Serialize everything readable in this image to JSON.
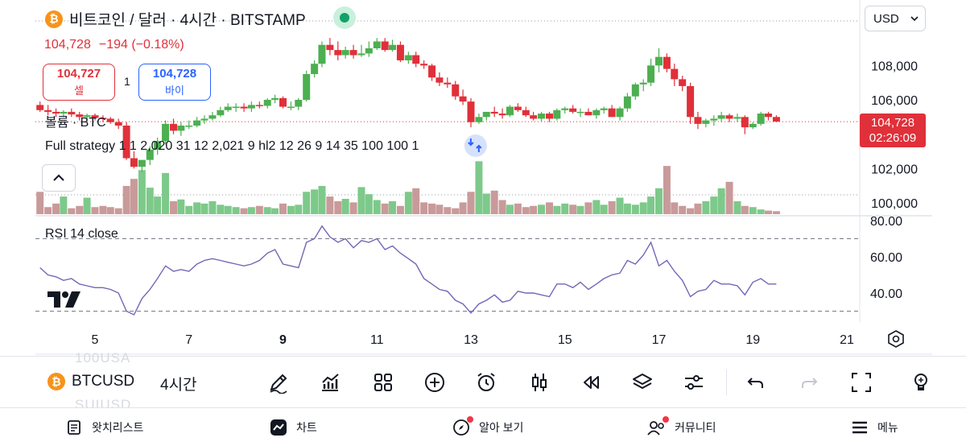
{
  "header": {
    "title": "비트코인 / 달러 · 4시간 · BITSTAMP",
    "logo_glyph": "₿",
    "price": "104,728",
    "change": "−194 (−0.18%)",
    "sell_price": "104,727",
    "sell_label": "셀",
    "buy_price": "104,728",
    "buy_label": "바이",
    "spread": "1"
  },
  "indicators": {
    "volume_label": "볼륨 · BTC",
    "strategy_label": "Full strategy 1 1 2,020 31 12 2,021 9 hl2 12 26 9 14 35 100 100 1",
    "rsi_label": "RSI 14 close"
  },
  "currency_selector": {
    "value": "USD",
    "icon": "chevron-down-icon"
  },
  "last_price_tag": {
    "price": "104,728",
    "countdown": "02:26:09"
  },
  "colors": {
    "up": "#4caf50",
    "down": "#e0303a",
    "up_vol": "#7dc98a",
    "down_vol": "#c99a9a",
    "rsi": "#7267b5",
    "accent": "#2962ff"
  },
  "chart_data": [
    {
      "type": "candlestick",
      "title": "비트코인 / 달러 · 4시간 · BITSTAMP",
      "y_ticks": [
        "108,000",
        "106,000",
        "102,000",
        "100,000"
      ],
      "x_ticks": [
        "5",
        "7",
        "9",
        "11",
        "13",
        "15",
        "17",
        "19",
        "21"
      ],
      "ylim": [
        99500,
        110500
      ],
      "xlim": [
        3.8,
        21.0
      ],
      "last_price": 104728,
      "x": [
        3.83,
        4.0,
        4.17,
        4.33,
        4.5,
        4.67,
        4.83,
        5.0,
        5.17,
        5.33,
        5.5,
        5.67,
        5.83,
        6.0,
        6.17,
        6.33,
        6.5,
        6.67,
        6.83,
        7.0,
        7.17,
        7.33,
        7.5,
        7.67,
        7.83,
        8.0,
        8.17,
        8.33,
        8.5,
        8.67,
        8.83,
        9.0,
        9.17,
        9.33,
        9.5,
        9.67,
        9.83,
        10.0,
        10.17,
        10.33,
        10.5,
        10.67,
        10.83,
        11.0,
        11.17,
        11.33,
        11.5,
        11.67,
        11.83,
        12.0,
        12.17,
        12.33,
        12.5,
        12.67,
        12.83,
        13.0,
        13.17,
        13.33,
        13.5,
        13.67,
        13.83,
        14.0,
        14.17,
        14.33,
        14.5,
        14.67,
        14.83,
        15.0,
        15.17,
        15.33,
        15.5,
        15.67,
        15.83,
        16.0,
        16.17,
        16.33,
        16.5,
        16.67,
        16.83,
        17.0,
        17.17,
        17.33,
        17.5,
        17.67,
        17.83,
        18.0,
        18.17,
        18.33,
        18.5,
        18.67,
        18.83,
        19.0,
        19.17,
        19.33,
        19.5
      ],
      "open": [
        105700,
        105400,
        105300,
        105200,
        105300,
        105150,
        105000,
        105100,
        104950,
        104900,
        104700,
        104500,
        102600,
        102100,
        102500,
        103100,
        103600,
        104600,
        104200,
        104500,
        104500,
        104800,
        104900,
        105100,
        105400,
        105600,
        105600,
        105500,
        105700,
        105650,
        106000,
        106100,
        105600,
        105600,
        106000,
        107500,
        108100,
        109200,
        108900,
        108600,
        108900,
        108600,
        108700,
        109000,
        109400,
        108900,
        109200,
        108300,
        108600,
        108100,
        108000,
        107300,
        107000,
        106900,
        106200,
        105900,
        104700,
        105000,
        105300,
        105200,
        105100,
        105600,
        105400,
        105100,
        104900,
        105200,
        104900,
        105400,
        105500,
        105300,
        105300,
        105100,
        105400,
        105500,
        105000,
        105500,
        106200,
        106900,
        107000,
        108000,
        108500,
        107800,
        107200,
        106800,
        105000,
        104600,
        104800,
        104900,
        105100,
        104900,
        105000,
        104400,
        104600,
        105200,
        105000
      ],
      "high": [
        105900,
        105700,
        105500,
        105400,
        105500,
        105300,
        105200,
        105200,
        105100,
        105000,
        104900,
        104700,
        103000,
        102500,
        103300,
        103800,
        104800,
        104900,
        104700,
        104800,
        105000,
        105100,
        105300,
        105600,
        105800,
        105800,
        105800,
        105900,
        105900,
        106100,
        106300,
        106200,
        105900,
        106100,
        107700,
        108300,
        109400,
        109600,
        109400,
        109100,
        109200,
        109200,
        109400,
        109600,
        109600,
        109500,
        109400,
        108800,
        108800,
        108300,
        108100,
        107600,
        107300,
        107100,
        106600,
        106100,
        105200,
        105300,
        105600,
        105500,
        105700,
        105800,
        105600,
        105300,
        105300,
        105300,
        105500,
        105600,
        105700,
        105500,
        105500,
        105500,
        105600,
        105700,
        105600,
        106400,
        107000,
        107200,
        108400,
        109000,
        108700,
        108100,
        107400,
        107000,
        105300,
        104900,
        105100,
        105300,
        105200,
        105200,
        105100,
        104700,
        105300,
        105300,
        105100
      ],
      "low": [
        105300,
        105100,
        105000,
        105000,
        105000,
        104800,
        104800,
        104800,
        104700,
        104600,
        104300,
        102500,
        102000,
        101800,
        102200,
        102800,
        103400,
        104000,
        103900,
        104300,
        104400,
        104600,
        104800,
        105000,
        105300,
        105300,
        105300,
        105300,
        105500,
        105500,
        105800,
        105500,
        105400,
        105400,
        105900,
        107300,
        107900,
        108600,
        108300,
        108400,
        108400,
        108500,
        108500,
        108900,
        108800,
        108800,
        108200,
        108100,
        107900,
        107800,
        107100,
        106800,
        106700,
        106000,
        105700,
        104400,
        104600,
        104800,
        105000,
        104900,
        105000,
        105300,
        105000,
        104800,
        104700,
        104700,
        104800,
        105200,
        105200,
        105000,
        105100,
        104900,
        105200,
        105000,
        104800,
        105300,
        106000,
        106500,
        106800,
        107600,
        107600,
        106800,
        106500,
        104600,
        104300,
        104400,
        104500,
        104700,
        104700,
        104700,
        104000,
        104300,
        104500,
        104800,
        104700
      ],
      "close": [
        105400,
        105300,
        105200,
        105300,
        105150,
        105000,
        105100,
        104950,
        104900,
        104700,
        104500,
        102600,
        102100,
        102500,
        103100,
        103600,
        104600,
        104200,
        104500,
        104500,
        104800,
        104900,
        105100,
        105400,
        105600,
        105600,
        105500,
        105700,
        105650,
        106000,
        106100,
        105600,
        105600,
        106000,
        107500,
        108100,
        109200,
        108900,
        108600,
        108900,
        108600,
        108700,
        109000,
        109400,
        108900,
        109200,
        108300,
        108600,
        108100,
        108000,
        107300,
        107000,
        106900,
        106200,
        105900,
        104700,
        105000,
        105300,
        105200,
        105100,
        105600,
        105400,
        105100,
        104900,
        105200,
        104900,
        105400,
        105500,
        105300,
        105300,
        105100,
        105400,
        105500,
        105000,
        105500,
        106200,
        106900,
        107000,
        108000,
        108500,
        107800,
        107200,
        106800,
        105000,
        104600,
        104800,
        104900,
        105100,
        104900,
        105000,
        104400,
        104600,
        105200,
        105000,
        104728
      ],
      "volume": [
        38,
        12,
        18,
        30,
        10,
        14,
        28,
        12,
        14,
        12,
        10,
        48,
        60,
        75,
        45,
        30,
        70,
        22,
        25,
        14,
        20,
        18,
        22,
        16,
        14,
        12,
        10,
        12,
        14,
        12,
        10,
        18,
        14,
        16,
        38,
        42,
        48,
        30,
        22,
        26,
        20,
        46,
        34,
        24,
        18,
        22,
        14,
        38,
        44,
        20,
        18,
        16,
        12,
        10,
        20,
        38,
        90,
        35,
        40,
        24,
        16,
        18,
        12,
        14,
        16,
        20,
        14,
        18,
        16,
        14,
        20,
        24,
        16,
        22,
        28,
        18,
        16,
        20,
        30,
        44,
        82,
        20,
        14,
        10,
        18,
        22,
        30,
        44,
        55,
        22,
        14,
        12,
        8,
        6,
        5
      ]
    },
    {
      "type": "line",
      "title": "RSI 14 close",
      "y_ticks": [
        "80.00",
        "60.00",
        "40.00"
      ],
      "ylim": [
        22,
        86
      ],
      "reference_lines": [
        70,
        30
      ],
      "x": [
        3.83,
        4.0,
        4.17,
        4.33,
        4.5,
        4.67,
        4.83,
        5.0,
        5.17,
        5.33,
        5.5,
        5.67,
        5.83,
        6.0,
        6.17,
        6.33,
        6.5,
        6.67,
        6.83,
        7.0,
        7.17,
        7.33,
        7.5,
        7.67,
        7.83,
        8.0,
        8.17,
        8.33,
        8.5,
        8.67,
        8.83,
        9.0,
        9.17,
        9.33,
        9.5,
        9.67,
        9.83,
        10.0,
        10.17,
        10.33,
        10.5,
        10.67,
        10.83,
        11.0,
        11.17,
        11.33,
        11.5,
        11.67,
        11.83,
        12.0,
        12.17,
        12.33,
        12.5,
        12.67,
        12.83,
        13.0,
        13.17,
        13.33,
        13.5,
        13.67,
        13.83,
        14.0,
        14.17,
        14.33,
        14.5,
        14.67,
        14.83,
        15.0,
        15.17,
        15.33,
        15.5,
        15.67,
        15.83,
        16.0,
        16.17,
        16.33,
        16.5,
        16.67,
        16.83,
        17.0,
        17.17,
        17.33,
        17.5,
        17.67,
        17.83,
        18.0,
        18.17,
        18.33,
        18.5,
        18.67,
        18.83,
        19.0,
        19.17,
        19.33,
        19.5
      ],
      "series": [
        {
          "values": [
            54,
            50,
            49,
            47,
            48,
            45,
            44,
            43,
            43,
            42,
            40,
            30,
            28,
            37,
            42,
            48,
            55,
            52,
            53,
            52,
            56,
            58,
            59,
            58,
            57,
            56,
            55,
            56,
            58,
            62,
            64,
            56,
            55,
            54,
            68,
            70,
            77,
            71,
            68,
            70,
            65,
            69,
            68,
            70,
            64,
            66,
            62,
            59,
            56,
            48,
            45,
            42,
            41,
            36,
            34,
            29,
            34,
            36,
            39,
            35,
            36,
            41,
            40,
            40,
            39,
            38,
            45,
            45,
            43,
            46,
            42,
            45,
            48,
            50,
            51,
            58,
            56,
            61,
            68,
            55,
            58,
            52,
            47,
            38,
            41,
            42,
            47,
            45,
            45,
            44,
            39,
            46,
            48,
            45,
            45
          ]
        }
      ]
    }
  ],
  "toolbar": {
    "symbol": "BTCUSD",
    "interval": "4시간",
    "ghost_above": "100USA",
    "ghost_below": "SUIUSD"
  },
  "nav": {
    "watchlist": "왓치리스트",
    "chart": "차트",
    "explore": "알아 보기",
    "community": "커뮤니티",
    "menu": "메뉴"
  }
}
